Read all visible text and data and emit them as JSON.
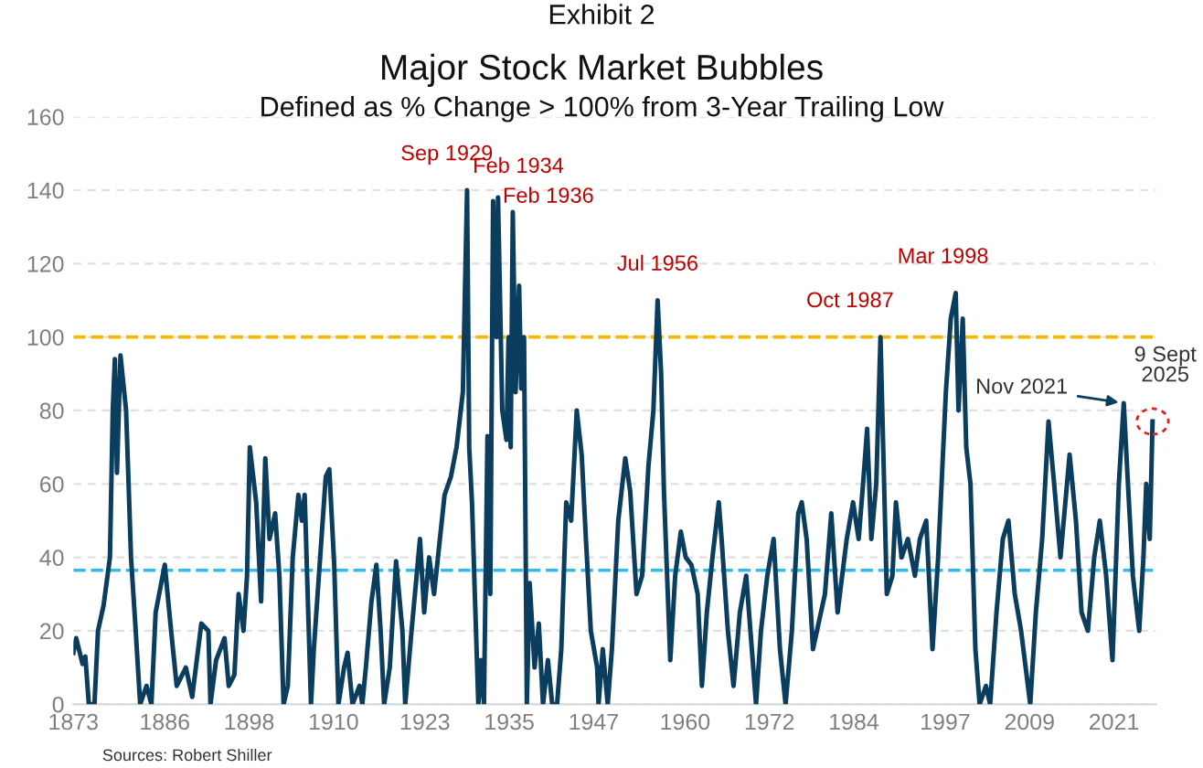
{
  "chart_data": {
    "type": "line",
    "title": "Major Stock Market Bubbles",
    "subtitle": "Defined as % Change > 100% from 3-Year Trailing Low",
    "annotations": [
      "Exhibit 2",
      {
        "text": "Sep 1929",
        "x": 1929.0,
        "y": 140
      },
      {
        "text": "Feb 1934",
        "x": 1933.4,
        "y": 138
      },
      {
        "text": "Feb 1936",
        "x": 1935.5,
        "y": 134
      },
      {
        "text": "Jul 1956",
        "x": 1956.1,
        "y": 110
      },
      {
        "text": "Oct 1987",
        "x": 1987.8,
        "y": 100
      },
      {
        "text": "Mar 1998",
        "x": 1998.5,
        "y": 112
      },
      {
        "text": "Nov 2021",
        "x": 2022.4,
        "y": 82
      },
      {
        "text": "9 Sept\n2025",
        "x": 2026.5,
        "y": 77
      },
      "Sources: Robert Shiller"
    ],
    "series": [
      {
        "color": "#0b3d5e",
        "x": [
          1873.0,
          1873.4,
          1874.3,
          1874.7,
          1875.2,
          1876.0,
          1876.5,
          1877.3,
          1878.2,
          1878.6,
          1878.9,
          1879.2,
          1879.7,
          1880.5,
          1881.2,
          1881.8,
          1882.5,
          1883.4,
          1884.1,
          1884.7,
          1886.0,
          1886.9,
          1887.7,
          1889.0,
          1889.9,
          1891.2,
          1892.2,
          1892.5,
          1893.3,
          1894.5,
          1895.1,
          1895.9,
          1896.5,
          1897.2,
          1897.7,
          1898.1,
          1899.0,
          1899.7,
          1900.3,
          1900.9,
          1901.7,
          1902.3,
          1902.9,
          1903.5,
          1904.2,
          1905.0,
          1905.5,
          1905.9,
          1906.8,
          1907.2,
          1908.1,
          1908.9,
          1909.4,
          1910.1,
          1910.7,
          1911.5,
          1912.0,
          1912.7,
          1913.7,
          1914.1,
          1914.6,
          1915.4,
          1916.1,
          1916.7,
          1917.2,
          1918.0,
          1918.9,
          1919.8,
          1920.2,
          1921.1,
          1922.3,
          1922.9,
          1923.6,
          1924.3,
          1925.8,
          1926.7,
          1927.5,
          1928.4,
          1928.8,
          1929.0,
          1929.3,
          1929.7,
          1930.1,
          1930.6,
          1931.0,
          1931.4,
          1931.9,
          1932.3,
          1932.7,
          1933.2,
          1933.4,
          1934.0,
          1934.6,
          1934.9,
          1935.2,
          1935.5,
          1935.9,
          1936.4,
          1936.7,
          1937.1,
          1937.5,
          1937.9,
          1938.6,
          1939.2,
          1939.8,
          1940.5,
          1941.1,
          1941.8,
          1942.4,
          1943.1,
          1943.8,
          1944.6,
          1945.3,
          1945.9,
          1946.6,
          1947.5,
          1947.7,
          1948.3,
          1949.0,
          1949.6,
          1950.5,
          1951.5,
          1952.2,
          1953.1,
          1953.9,
          1954.8,
          1955.5,
          1956.1,
          1956.6,
          1957.0,
          1957.9,
          1958.6,
          1959.4,
          1960.1,
          1960.9,
          1961.8,
          1962.4,
          1963.1,
          1963.9,
          1964.8,
          1965.2,
          1966.1,
          1966.9,
          1967.8,
          1968.7,
          1969.5,
          1970.1,
          1970.8,
          1971.7,
          1972.6,
          1973.5,
          1974.3,
          1975.2,
          1976.1,
          1976.6,
          1977.3,
          1978.2,
          1979.1,
          1979.9,
          1980.8,
          1981.7,
          1983.0,
          1983.9,
          1984.7,
          1985.4,
          1985.9,
          1986.5,
          1987.2,
          1987.8,
          1988.7,
          1989.5,
          1990.0,
          1990.8,
          1991.7,
          1992.7,
          1993.4,
          1994.3,
          1995.2,
          1996.0,
          1997.1,
          1997.8,
          1998.5,
          1998.9,
          1999.5,
          2000.0,
          2000.6,
          2001.3,
          2001.9,
          2002.8,
          2003.4,
          2004.3,
          2005.2,
          2006.0,
          2006.9,
          2007.8,
          2009.1,
          2009.9,
          2010.8,
          2011.7,
          2012.5,
          2013.4,
          2014.7,
          2015.6,
          2016.4,
          2017.3,
          2018.2,
          2019.0,
          2019.9,
          2020.8,
          2021.7,
          2022.4,
          2023.0,
          2023.7,
          2024.6,
          2025.2,
          2025.6,
          2026.1,
          2026.5
        ],
        "values": [
          14,
          18,
          11,
          13,
          0,
          0,
          20,
          27,
          40,
          80,
          94,
          63,
          95,
          80,
          40,
          22,
          0,
          5,
          0,
          25,
          38,
          20,
          5,
          10,
          2,
          22,
          20,
          0,
          12,
          18,
          5,
          8,
          30,
          20,
          35,
          70,
          55,
          28,
          67,
          45,
          52,
          35,
          0,
          5,
          40,
          57,
          50,
          57,
          0,
          15,
          40,
          62,
          64,
          38,
          0,
          10,
          14,
          0,
          5,
          0,
          10,
          28,
          38,
          20,
          0,
          10,
          39,
          20,
          0,
          20,
          45,
          25,
          40,
          30,
          57,
          62,
          70,
          85,
          122,
          140,
          70,
          55,
          30,
          0,
          12,
          0,
          73,
          30,
          137,
          100,
          138,
          80,
          72,
          100,
          70,
          134,
          85,
          114,
          86,
          100,
          0,
          33,
          10,
          22,
          0,
          12,
          0,
          0,
          15,
          55,
          50,
          80,
          68,
          45,
          20,
          10,
          0,
          15,
          0,
          15,
          50,
          67,
          58,
          30,
          35,
          65,
          80,
          110,
          90,
          58,
          12,
          35,
          47,
          40,
          38,
          30,
          5,
          25,
          40,
          55,
          45,
          20,
          5,
          25,
          35,
          15,
          0,
          20,
          35,
          45,
          15,
          0,
          20,
          52,
          55,
          45,
          15,
          23,
          30,
          52,
          25,
          45,
          55,
          45,
          62,
          75,
          45,
          60,
          100,
          30,
          35,
          55,
          40,
          45,
          35,
          45,
          50,
          15,
          40,
          85,
          105,
          112,
          80,
          105,
          70,
          60,
          15,
          0,
          5,
          0,
          25,
          45,
          50,
          30,
          20,
          0,
          25,
          45,
          77,
          60,
          40,
          68,
          50,
          25,
          20,
          40,
          50,
          35,
          12,
          60,
          82,
          60,
          35,
          20,
          40,
          60,
          45,
          77
        ]
      }
    ],
    "xlim": [
      1873,
      2027
    ],
    "xticks": [
      1873,
      1886,
      1898,
      1910,
      1923,
      1935,
      1947,
      1960,
      1972,
      1984,
      1997,
      2009,
      2021
    ],
    "ylim": [
      0,
      160
    ],
    "yticks": [
      0,
      20,
      40,
      60,
      80,
      100,
      120,
      140,
      160
    ],
    "ref_lines": [
      {
        "axis": "y",
        "value": 100,
        "label": null,
        "color": "#f5b800",
        "line_style": "dashed"
      },
      {
        "axis": "y",
        "value": 36.5,
        "label": null,
        "color": "#33bbee",
        "line_style": "dashed"
      }
    ],
    "grid": "y",
    "marker": "none",
    "line_style": "solid"
  }
}
